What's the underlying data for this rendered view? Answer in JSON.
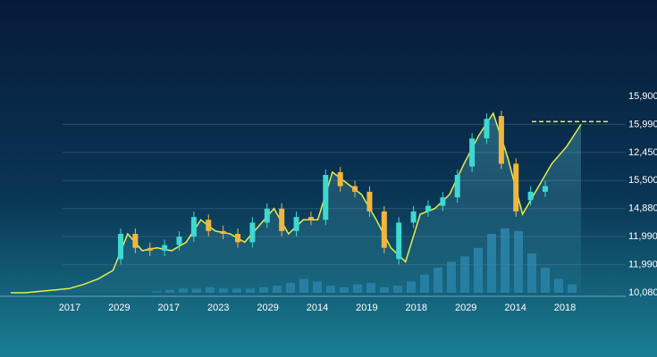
{
  "chart_data": {
    "type": "candlestick",
    "x_labels": [
      "2017",
      "2029",
      "2017",
      "2023",
      "2029",
      "2014",
      "2019",
      "2018",
      "2029",
      "2014",
      "2018"
    ],
    "yticks": [
      {
        "value": 0,
        "label": "10,080"
      },
      {
        "value": 1,
        "label": "11,990"
      },
      {
        "value": 2,
        "label": "11,990"
      },
      {
        "value": 3,
        "label": "14,880"
      },
      {
        "value": 4,
        "label": "15,500"
      },
      {
        "value": 5,
        "label": "12,450"
      },
      {
        "value": 6,
        "label": "15,990"
      },
      {
        "value": 7,
        "label": "15,900"
      }
    ],
    "ylim": [
      0,
      7
    ],
    "grid": true,
    "line_color": "#e4ee4a",
    "up_color": "#3fd8d0",
    "down_color": "#f2b640",
    "volume_color": "#2a86b0",
    "price": [
      0,
      0,
      0.05,
      0.1,
      0.15,
      0.3,
      0.5,
      0.8,
      2.1,
      1.5,
      1.6,
      1.5,
      1.8,
      2.6,
      2.2,
      2.1,
      1.8,
      2.4,
      3.0,
      2.1,
      2.6,
      2.6,
      4.3,
      3.9,
      3.5,
      2.6,
      1.6,
      1.1,
      2.8,
      3.0,
      3.5,
      4.6,
      5.6,
      6.4,
      4.8,
      2.8,
      3.7,
      4.6,
      5.2,
      6.0
    ],
    "candles": [
      {
        "open": 1.2,
        "close": 2.1
      },
      {
        "open": 2.1,
        "close": 1.6
      },
      {
        "open": 1.6,
        "close": 1.5
      },
      {
        "open": 1.5,
        "close": 1.7
      },
      {
        "open": 1.7,
        "close": 2.0
      },
      {
        "open": 2.0,
        "close": 2.7
      },
      {
        "open": 2.6,
        "close": 2.2
      },
      {
        "open": 2.2,
        "close": 2.1
      },
      {
        "open": 2.1,
        "close": 1.8
      },
      {
        "open": 1.8,
        "close": 2.5
      },
      {
        "open": 2.5,
        "close": 3.0
      },
      {
        "open": 3.0,
        "close": 2.2
      },
      {
        "open": 2.2,
        "close": 2.7
      },
      {
        "open": 2.7,
        "close": 2.6
      },
      {
        "open": 2.6,
        "close": 4.2
      },
      {
        "open": 4.3,
        "close": 3.8
      },
      {
        "open": 3.8,
        "close": 3.6
      },
      {
        "open": 3.6,
        "close": 2.9
      },
      {
        "open": 2.9,
        "close": 1.6
      },
      {
        "open": 1.2,
        "close": 2.5
      },
      {
        "open": 2.5,
        "close": 2.9
      },
      {
        "open": 2.9,
        "close": 3.1
      },
      {
        "open": 3.1,
        "close": 3.4
      },
      {
        "open": 3.4,
        "close": 4.2
      },
      {
        "open": 4.5,
        "close": 5.5
      },
      {
        "open": 5.5,
        "close": 6.2
      },
      {
        "open": 6.3,
        "close": 4.6
      },
      {
        "open": 4.6,
        "close": 2.9
      },
      {
        "open": 3.3,
        "close": 3.6
      },
      {
        "open": 3.6,
        "close": 3.8
      }
    ],
    "volume": [
      0.05,
      0.1,
      0.15,
      0.15,
      0.2,
      0.15,
      0.15,
      0.15,
      0.2,
      0.25,
      0.35,
      0.5,
      0.4,
      0.25,
      0.2,
      0.3,
      0.35,
      0.2,
      0.25,
      0.4,
      0.65,
      0.9,
      1.1,
      1.3,
      1.6,
      2.1,
      2.3,
      2.2,
      1.4,
      0.9,
      0.5,
      0.3
    ],
    "target_level": 6.1
  }
}
